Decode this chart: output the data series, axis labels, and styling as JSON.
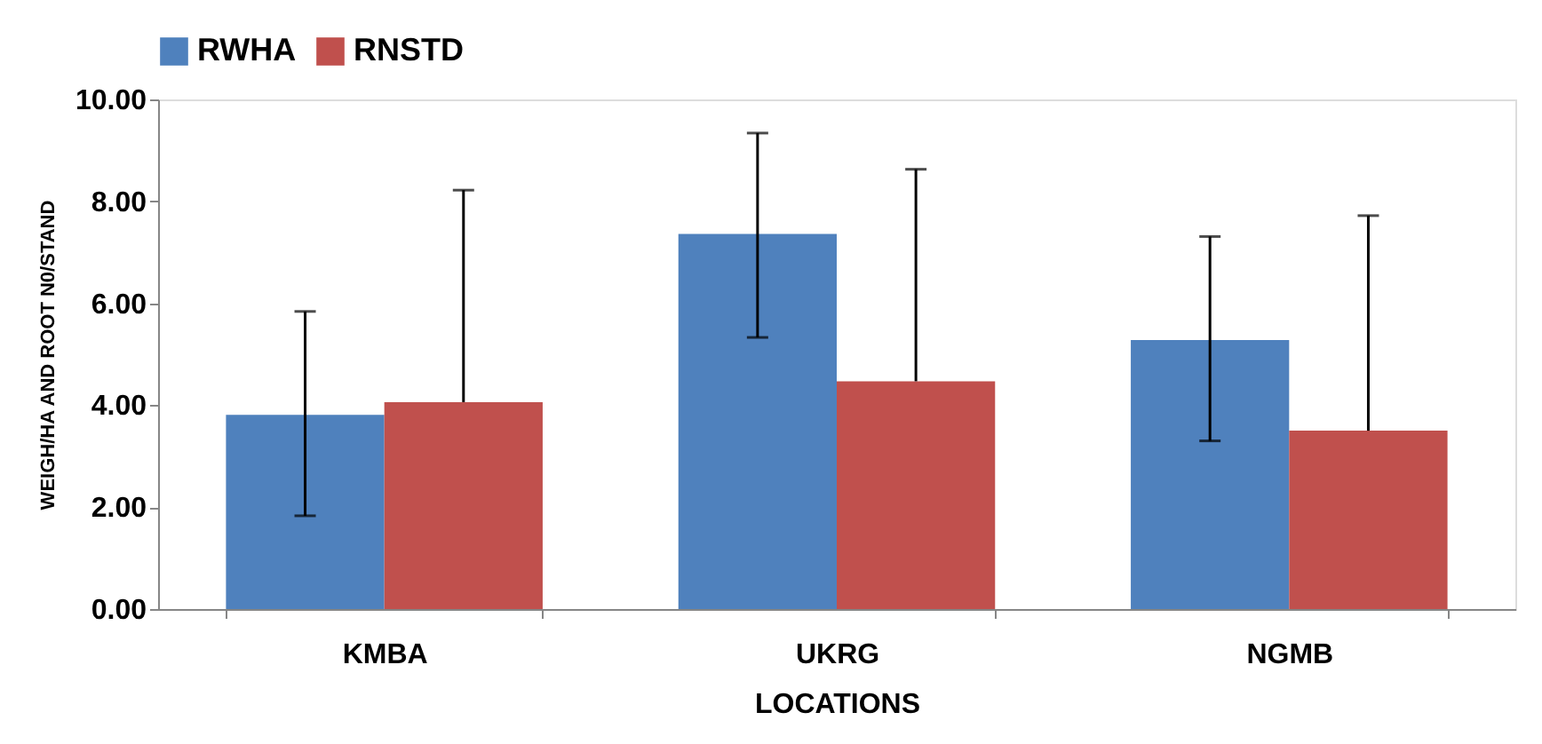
{
  "chart_data": {
    "type": "bar",
    "xlabel": "LOCATIONS",
    "ylabel": "WEIGH/HA  AND ROOT N0/STAND",
    "categories": [
      "KMBA",
      "UKRG",
      "NGMB"
    ],
    "series": [
      {
        "name": "RWHA",
        "color": "#4f81bd",
        "values": [
          3.81,
          7.36,
          5.28
        ],
        "errors": [
          [
            1.83,
            5.84
          ],
          [
            5.33,
            9.34
          ],
          [
            3.3,
            7.31
          ]
        ]
      },
      {
        "name": "RNSTD",
        "color": "#c0504d",
        "values": [
          4.06,
          4.47,
          3.5
        ],
        "errors": [
          [
            4.06,
            8.22
          ],
          [
            4.47,
            8.63
          ],
          [
            3.5,
            7.72
          ]
        ]
      }
    ],
    "ylim": [
      0,
      10
    ],
    "yticks": [
      {
        "value": 0,
        "label": "0.00"
      },
      {
        "value": 2,
        "label": "2.00"
      },
      {
        "value": 4,
        "label": "4.00"
      },
      {
        "value": 6,
        "label": "6.00"
      },
      {
        "value": 8,
        "label": "8.00"
      },
      {
        "value": 10,
        "label": "10.00"
      }
    ],
    "grid": false,
    "legend": "top"
  }
}
